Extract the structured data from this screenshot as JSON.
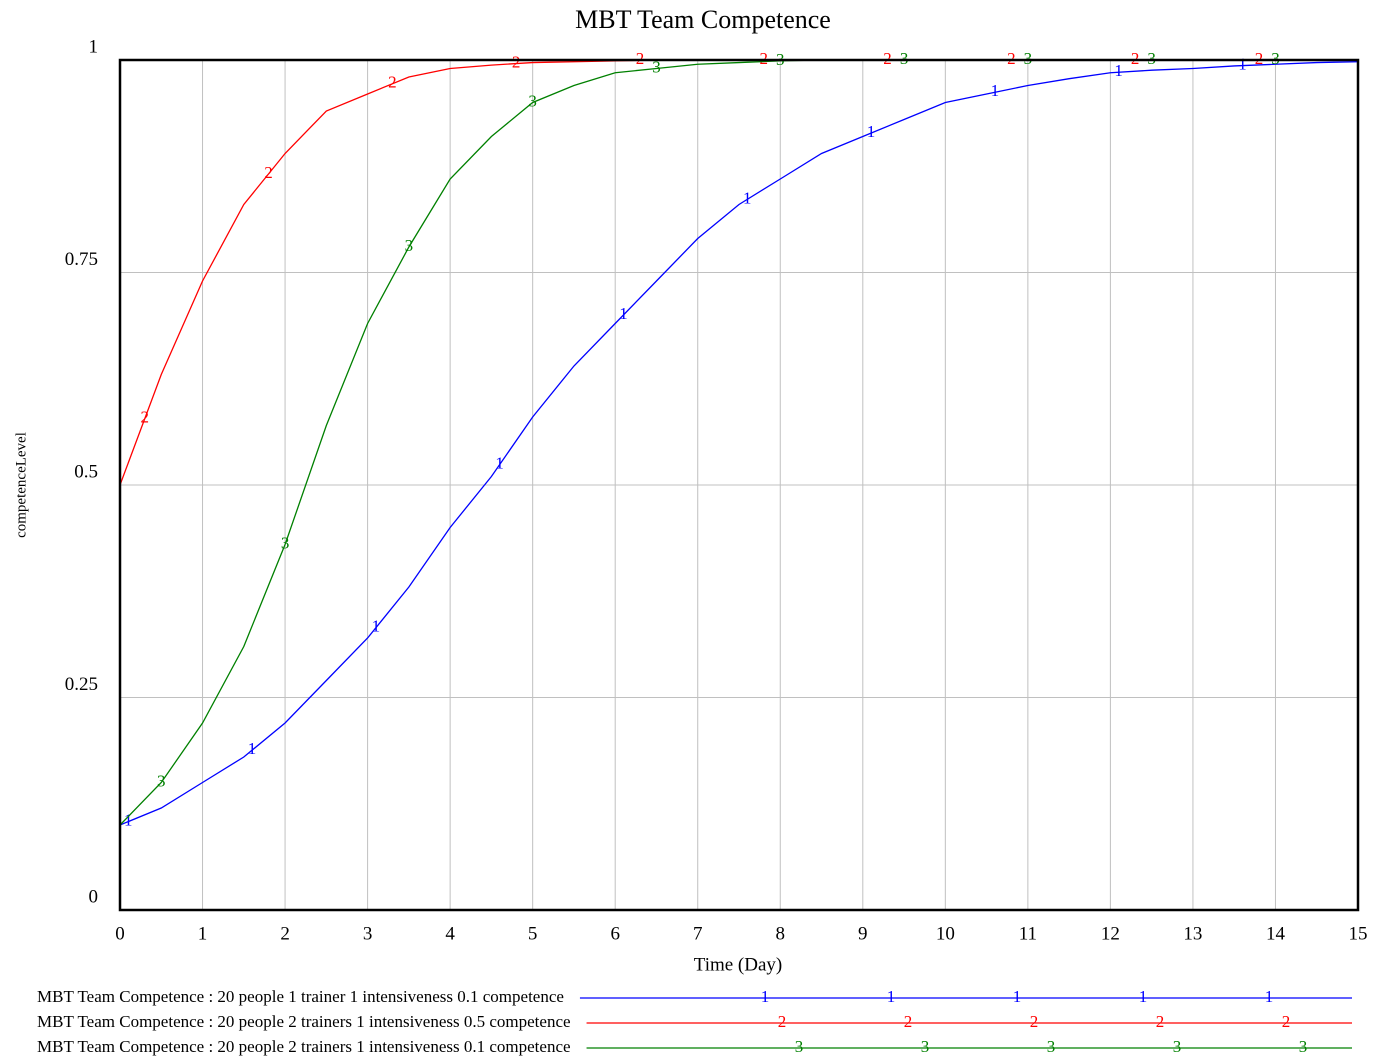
{
  "chart_data": {
    "type": "line",
    "title": "MBT Team Competence",
    "xlabel": "Time (Day)",
    "ylabel": "competenceLevel",
    "x": [
      0,
      0.5,
      1,
      1.5,
      2,
      2.5,
      3,
      3.5,
      4,
      4.5,
      5,
      5.5,
      6,
      6.5,
      7,
      7.5,
      8,
      8.5,
      9,
      9.5,
      10,
      10.5,
      11,
      11.5,
      12,
      12.5,
      13,
      13.5,
      14,
      14.5,
      15
    ],
    "series": [
      {
        "name": "MBT Team Competence : 20 people 1 trainer 1 intensiveness 0.1 competence",
        "marker": "1",
        "color": "#0000ff",
        "values": [
          0.1,
          0.12,
          0.15,
          0.18,
          0.22,
          0.27,
          0.32,
          0.38,
          0.45,
          0.51,
          0.58,
          0.64,
          0.69,
          0.74,
          0.79,
          0.83,
          0.86,
          0.89,
          0.91,
          0.93,
          0.95,
          0.96,
          0.97,
          0.978,
          0.985,
          0.988,
          0.99,
          0.993,
          0.995,
          0.997,
          0.998
        ]
      },
      {
        "name": "MBT Team Competence : 20 people 2 trainers 1 intensiveness 0.5 competence",
        "marker": "2",
        "color": "#ff0000",
        "values": [
          0.5,
          0.63,
          0.74,
          0.83,
          0.89,
          0.94,
          0.96,
          0.98,
          0.99,
          0.994,
          0.997,
          0.998,
          0.999,
          1,
          1,
          1,
          1,
          1,
          1,
          1,
          1,
          1,
          1,
          1,
          1,
          1,
          1,
          1,
          1,
          1,
          1
        ]
      },
      {
        "name": "MBT Team Competence : 20 people 2 trainers 1 intensiveness 0.1 competence",
        "marker": "3",
        "color": "#008000",
        "values": [
          0.1,
          0.15,
          0.22,
          0.31,
          0.43,
          0.57,
          0.69,
          0.78,
          0.86,
          0.91,
          0.95,
          0.97,
          0.985,
          0.99,
          0.995,
          0.997,
          0.999,
          1,
          1,
          1,
          1,
          1,
          1,
          1,
          1,
          1,
          1,
          1,
          1,
          1,
          1
        ]
      }
    ],
    "xlim": [
      0,
      15
    ],
    "xticks": [
      0,
      1,
      2,
      3,
      4,
      5,
      6,
      7,
      8,
      9,
      10,
      11,
      12,
      13,
      14,
      15
    ],
    "ylim": [
      0,
      1
    ],
    "yticks": [
      0,
      0.25,
      0.5,
      0.75,
      1
    ],
    "grid": true,
    "legend": "bottom"
  }
}
